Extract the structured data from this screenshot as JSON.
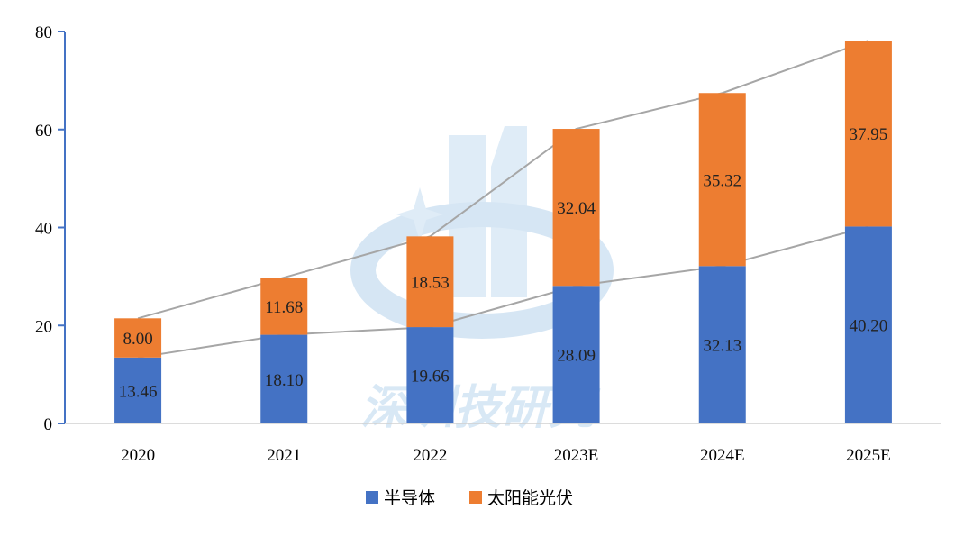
{
  "chart_data": {
    "type": "bar",
    "stacked": true,
    "categories": [
      "2020",
      "2021",
      "2022",
      "2023E",
      "2024E",
      "2025E"
    ],
    "series": [
      {
        "name": "半导体",
        "color": "#4472c4",
        "values": [
          13.46,
          18.1,
          19.66,
          28.09,
          32.13,
          40.2
        ],
        "labels": [
          "13.46",
          "18.10",
          "19.66",
          "28.09",
          "32.13",
          "40.20"
        ]
      },
      {
        "name": "太阳能光伏",
        "color": "#ed7d31",
        "values": [
          8.0,
          11.68,
          18.53,
          32.04,
          35.32,
          37.95
        ],
        "labels": [
          "8.00",
          "11.68",
          "18.53",
          "32.04",
          "35.32",
          "37.95"
        ]
      }
    ],
    "ylim": [
      0,
      80
    ],
    "yticks": [
      "0",
      "20",
      "40",
      "60",
      "80"
    ],
    "trend_lines": true,
    "legend": "bottom-center",
    "grid": false
  },
  "watermark": "深圳技研究"
}
